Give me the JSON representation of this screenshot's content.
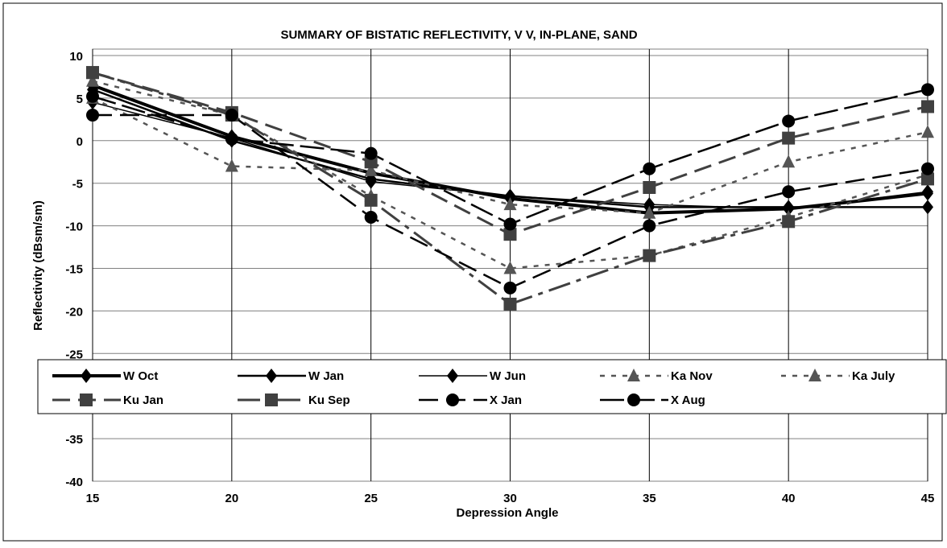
{
  "chart_data": {
    "type": "line",
    "title": "SUMMARY  OF BISTATIC REFLECTIVITY, V V,  IN-PLANE, SAND",
    "x_label": "Depression Angle",
    "y_label": "Reflectivity (dBsm/sm)",
    "x": [
      15,
      20,
      25,
      30,
      35,
      40,
      45
    ],
    "xlim": [
      15,
      45
    ],
    "xticks": [
      15,
      20,
      25,
      30,
      35,
      40,
      45
    ],
    "ylim": [
      -40,
      10
    ],
    "yticks": [
      10,
      5,
      0,
      -5,
      -10,
      -15,
      -20,
      -25,
      -30,
      -35,
      -40
    ],
    "grid": true,
    "series": [
      {
        "name": "W  Oct",
        "color": "#000000",
        "width": 4,
        "dash": "none",
        "marker": "diamond",
        "values": [
          6.5,
          0.5,
          -3.8,
          -6.8,
          -8.5,
          -8,
          -6.2
        ]
      },
      {
        "name": "W  Jan",
        "color": "#000000",
        "width": 2.5,
        "dash": "none",
        "marker": "diamond",
        "values": [
          6,
          0,
          -4.5,
          -6.5,
          -7.8,
          -7.8,
          -7.8
        ]
      },
      {
        "name": "W  Jun",
        "color": "#000000",
        "width": 1.5,
        "dash": "none",
        "marker": "diamond",
        "values": [
          4.5,
          0.3,
          -4.8,
          -6.5,
          -7.5,
          -8,
          -6
        ]
      },
      {
        "name": "Ka  Nov",
        "color": "#555555",
        "width": 2.5,
        "dash": "6 8",
        "marker": "triangle",
        "values": [
          5,
          -3,
          -3.5,
          -7.5,
          -8.5,
          -2.5,
          1
        ]
      },
      {
        "name": "Ka  July",
        "color": "#555555",
        "width": 2.5,
        "dash": "6 8",
        "marker": "triangle",
        "values": [
          7,
          3,
          -6.5,
          -15,
          -13.5,
          -9,
          -4
        ]
      },
      {
        "name": "Ku  Jan",
        "color": "#404040",
        "width": 3,
        "dash": "22 10",
        "marker": "square",
        "values": [
          8,
          3.3,
          -2.5,
          -11,
          -5.5,
          0.3,
          4
        ]
      },
      {
        "name": "Ku  Sep",
        "color": "#404040",
        "width": 3,
        "dash": "28 8 6 8",
        "marker": "square",
        "values": [
          8,
          3,
          -7,
          -19.2,
          -13.5,
          -9.5,
          -4.5
        ]
      },
      {
        "name": "X  Jan",
        "color": "#000000",
        "width": 2.5,
        "dash": "24 10",
        "marker": "circle",
        "values": [
          3,
          3,
          -9,
          -17.3,
          -10,
          -6,
          -3.3
        ]
      },
      {
        "name": "X  Aug",
        "color": "#000000",
        "width": 2.5,
        "dash": "30 8",
        "marker": "circle",
        "values": [
          5.2,
          0.2,
          -1.5,
          -9.8,
          -3.3,
          2.3,
          6
        ]
      }
    ]
  }
}
